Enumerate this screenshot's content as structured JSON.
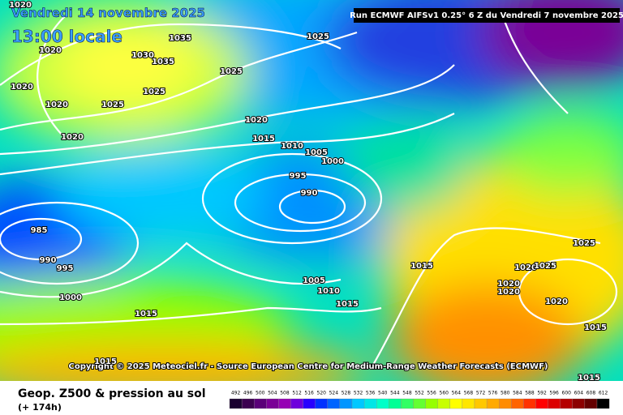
{
  "header": {
    "date": "Vendredi 14 novembre 2025",
    "time": "13:00 locale",
    "run": "Run ECMWF AIFSv1 0.25° 6 Z du Vendredi 7 novembre 2025"
  },
  "copyright": "Copyright © 2025 Meteociel.fr - Source European Centre for Medium-Range Weather Forecasts (ECMWF)",
  "footer": {
    "title": "Geop. Z500 & pression au sol",
    "lead": "(+ 174h)"
  },
  "isobar_labels": [
    "1020",
    "1035",
    "1020",
    "1030",
    "1035",
    "1025",
    "1025",
    "1020",
    "1025",
    "1020",
    "1025",
    "1020",
    "1020",
    "1015",
    "1010",
    "1005",
    "1000",
    "995",
    "990",
    "985",
    "990",
    "995",
    "1000",
    "1005",
    "1010",
    "1015",
    "1015",
    "1015",
    "1025",
    "1020",
    "1025",
    "1020",
    "1020",
    "1020",
    "1015",
    "1015",
    "1015"
  ],
  "colorbar": {
    "levels": [
      492,
      496,
      500,
      504,
      508,
      512,
      516,
      520,
      524,
      528,
      532,
      536,
      540,
      544,
      548,
      552,
      556,
      560,
      564,
      568,
      572,
      576,
      580,
      584,
      588,
      592,
      596,
      600,
      604,
      608,
      612
    ],
    "colors": [
      "#1a0030",
      "#3c0050",
      "#5a0078",
      "#7a0096",
      "#9600b4",
      "#6e00dc",
      "#2800ff",
      "#0032ff",
      "#0064ff",
      "#0096ff",
      "#00c8ff",
      "#00e6e6",
      "#00ffc8",
      "#00ff96",
      "#32ff64",
      "#64ff32",
      "#96ff00",
      "#c8ff00",
      "#ffff00",
      "#ffe600",
      "#ffc800",
      "#ffaa00",
      "#ff8c00",
      "#ff6400",
      "#ff3200",
      "#ff0000",
      "#dc0000",
      "#b40000",
      "#8c0000",
      "#640000",
      "#000000"
    ]
  }
}
